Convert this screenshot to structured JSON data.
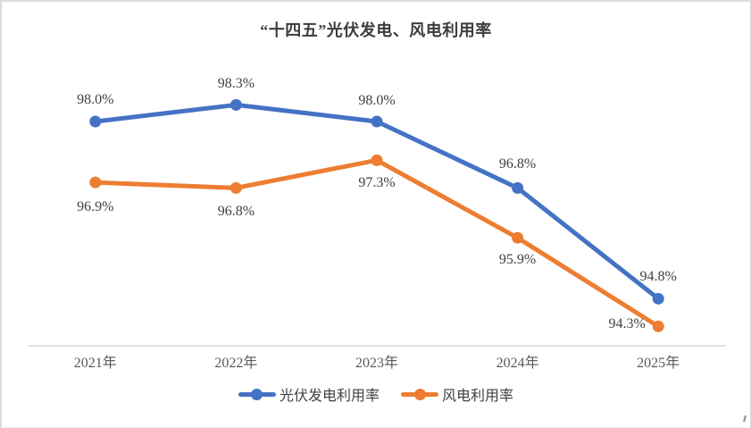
{
  "chart_data": {
    "type": "line",
    "title": "“十四五”光伏发电、风电利用率",
    "categories": [
      "2021年",
      "2022年",
      "2023年",
      "2024年",
      "2025年"
    ],
    "series": [
      {
        "name": "光伏发电利用率",
        "color": "#4472C4",
        "values": [
          98.0,
          98.3,
          98.0,
          96.8,
          94.8
        ],
        "labels": [
          "98.0%",
          "98.3%",
          "98.0%",
          "96.8%",
          "94.8%"
        ]
      },
      {
        "name": "风电利用率",
        "color": "#ED7D31",
        "values": [
          96.9,
          96.8,
          97.3,
          95.9,
          94.3
        ],
        "labels": [
          "96.9%",
          "96.8%",
          "97.3%",
          "95.9%",
          "94.3%"
        ]
      }
    ],
    "ylim": [
      93.95,
      98.79
    ],
    "grid": false,
    "y_axis_visible": false,
    "legend_position": "bottom",
    "axis_line_color": "#d9d9d9",
    "data_label_color": "#404040",
    "axis_label_color": "#595959",
    "title_color": "#3d3d3d"
  }
}
